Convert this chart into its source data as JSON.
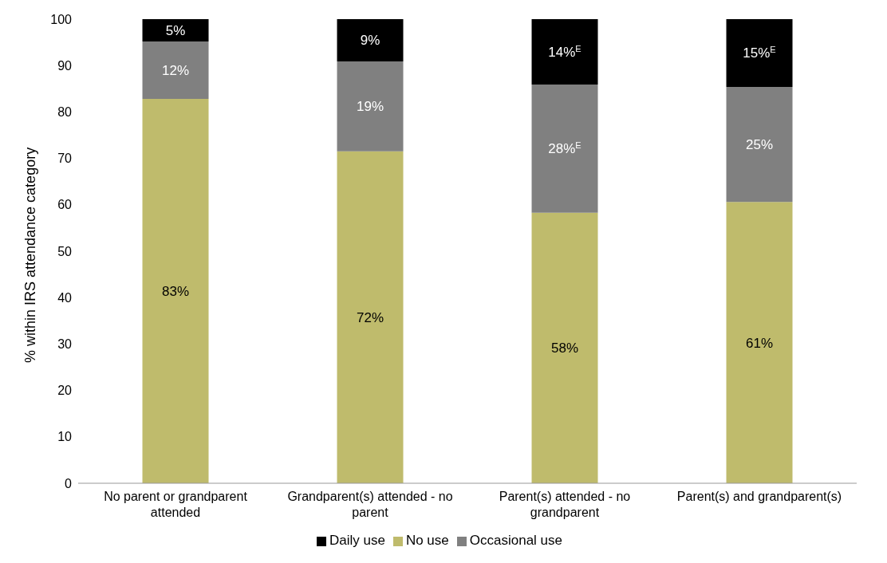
{
  "chart_data": {
    "type": "bar",
    "stacked": true,
    "ylabel": "% within IRS attendance category",
    "categories": [
      "No parent or grandparent attended",
      "Grandparent(s) attended - no parent",
      "Parent(s) attended - no grandparent",
      "Parent(s) and grandparent(s)"
    ],
    "series": [
      {
        "name": "No use",
        "color": "#bfbb6c",
        "values": [
          82.8,
          71.5,
          58.3,
          60.6
        ],
        "value_labels": [
          "83%",
          "72%",
          "58%",
          "61%"
        ]
      },
      {
        "name": "Occasional use",
        "color": "#808080",
        "values": [
          12.4,
          19.4,
          27.6,
          24.8
        ],
        "value_labels": [
          "12%",
          "19%",
          "28%$^{E}$",
          "25%"
        ]
      },
      {
        "name": "Daily use",
        "color": "#000000",
        "values": [
          4.8,
          9.1,
          14.1,
          14.6
        ],
        "value_labels": [
          "5%",
          "9%",
          "14%$^{E}$",
          "15%$^{E}$"
        ]
      }
    ],
    "ylim": [
      0,
      100
    ],
    "yticks": [
      0,
      10,
      20,
      30,
      40,
      50,
      60,
      70,
      80,
      90,
      100
    ],
    "grid": false,
    "legend": "bottom"
  }
}
